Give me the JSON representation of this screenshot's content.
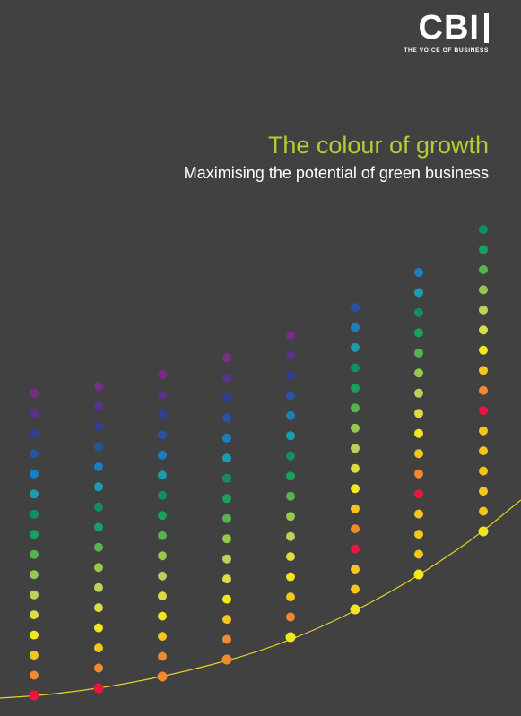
{
  "logo": {
    "text": "CBI",
    "tagline": "THE VOICE OF BUSINESS"
  },
  "title": "The colour of growth",
  "subtitle": "Maximising the potential of green business",
  "palette": {
    "background": "#414141",
    "title": "#b2cc36",
    "curve": "#e8d22a",
    "dots_bottom_to_top": [
      "#e8173f",
      "#ef8a2e",
      "#f6c51b",
      "#f2e71f",
      "#d9dd46",
      "#b9d35a",
      "#94c84f",
      "#56b44d",
      "#1a9f62",
      "#118d6e",
      "#1c9bb1",
      "#1a7fc2",
      "#2753a3",
      "#2f3f97",
      "#55338d",
      "#7a2b87"
    ]
  }
}
